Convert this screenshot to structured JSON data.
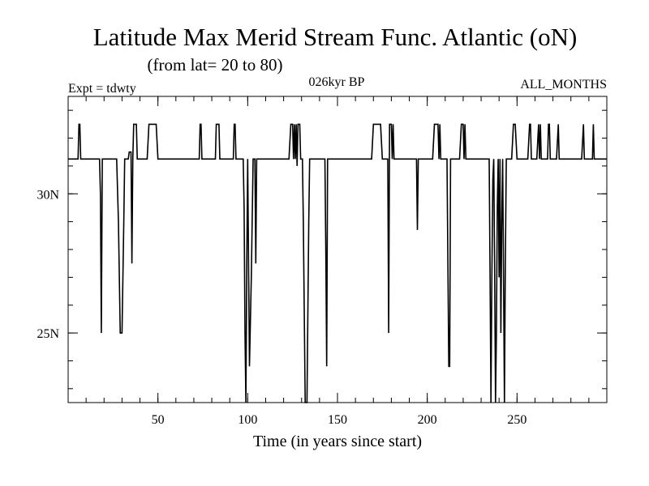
{
  "chart_data": {
    "type": "line",
    "title": "Latitude Max Merid Stream Func. Atlantic (oN)",
    "subtitle": "(from lat= 20 to 80)",
    "left_label": "Expt = tdwty",
    "center_label": "026kyr BP",
    "right_label": "ALL_MONTHS",
    "xlabel": "Time (in years since start)",
    "ylabel": "",
    "xlim": [
      0,
      300
    ],
    "ylim": [
      22.5,
      33.5
    ],
    "x_ticks": [
      {
        "value": 50,
        "label": "50"
      },
      {
        "value": 100,
        "label": "100"
      },
      {
        "value": 150,
        "label": "150"
      },
      {
        "value": 200,
        "label": "200"
      },
      {
        "value": 250,
        "label": "250"
      }
    ],
    "y_ticks": [
      {
        "value": 25,
        "label": "25N"
      },
      {
        "value": 30,
        "label": "30N"
      }
    ],
    "x_minor_step": 10,
    "y_minor_step": 1,
    "line_color": "#000000",
    "series": [
      {
        "name": "Latitude Max",
        "points": [
          [
            0,
            31.25
          ],
          [
            5.5,
            31.25
          ],
          [
            6,
            32.5
          ],
          [
            6.5,
            32.5
          ],
          [
            7,
            31.25
          ],
          [
            17.5,
            31.25
          ],
          [
            18,
            30
          ],
          [
            18.5,
            25
          ],
          [
            19,
            31.25
          ],
          [
            27,
            31.25
          ],
          [
            28,
            29
          ],
          [
            29,
            25
          ],
          [
            30,
            25
          ],
          [
            31,
            29
          ],
          [
            31.5,
            31.25
          ],
          [
            33.5,
            31.25
          ],
          [
            34,
            31.5
          ],
          [
            35,
            31.5
          ],
          [
            35.5,
            27.5
          ],
          [
            36,
            31.25
          ],
          [
            36.5,
            32.5
          ],
          [
            38,
            32.5
          ],
          [
            38.5,
            31.25
          ],
          [
            44,
            31.25
          ],
          [
            45,
            32.5
          ],
          [
            49,
            32.5
          ],
          [
            50,
            31.25
          ],
          [
            73,
            31.25
          ],
          [
            73.5,
            32.5
          ],
          [
            74,
            32.5
          ],
          [
            74.5,
            31.25
          ],
          [
            82,
            31.25
          ],
          [
            82.5,
            32.5
          ],
          [
            84,
            32.5
          ],
          [
            84.5,
            31.25
          ],
          [
            92,
            31.25
          ],
          [
            92.5,
            32.5
          ],
          [
            93,
            32.5
          ],
          [
            93.5,
            31.25
          ],
          [
            97.5,
            31.25
          ],
          [
            98,
            29.5
          ],
          [
            98.5,
            25
          ],
          [
            99,
            22.5
          ],
          [
            99.5,
            27.5
          ],
          [
            100,
            31.25
          ],
          [
            101,
            23.8
          ],
          [
            102,
            27
          ],
          [
            103,
            31.25
          ],
          [
            104,
            31.25
          ],
          [
            104.5,
            27.5
          ],
          [
            105,
            31.25
          ],
          [
            123,
            31.25
          ],
          [
            124,
            32.5
          ],
          [
            125,
            32.5
          ],
          [
            125.5,
            31.25
          ],
          [
            126,
            32.5
          ],
          [
            126.5,
            31.25
          ],
          [
            127,
            32.5
          ],
          [
            127.5,
            31
          ],
          [
            128,
            32.5
          ],
          [
            129,
            32.5
          ],
          [
            129.5,
            31.25
          ],
          [
            130.5,
            31.25
          ],
          [
            131,
            29
          ],
          [
            132,
            22.5
          ],
          [
            133,
            22.5
          ],
          [
            134,
            29
          ],
          [
            134.5,
            31.25
          ],
          [
            143,
            31.25
          ],
          [
            143.5,
            28
          ],
          [
            144,
            23.8
          ],
          [
            144.5,
            31.25
          ],
          [
            169,
            31.25
          ],
          [
            170,
            32.5
          ],
          [
            174,
            32.5
          ],
          [
            175,
            31.25
          ],
          [
            178,
            31.25
          ],
          [
            178.5,
            25
          ],
          [
            179,
            32.5
          ],
          [
            180,
            32.5
          ],
          [
            180.5,
            31.25
          ],
          [
            181,
            32.5
          ],
          [
            181.5,
            31.25
          ],
          [
            194,
            31.25
          ],
          [
            194.5,
            28.7
          ],
          [
            195,
            31.25
          ],
          [
            203,
            31.25
          ],
          [
            204,
            32.5
          ],
          [
            206,
            32.5
          ],
          [
            206.5,
            31.25
          ],
          [
            207,
            32.5
          ],
          [
            207.5,
            31.25
          ],
          [
            211,
            31.25
          ],
          [
            212,
            23.8
          ],
          [
            212.5,
            23.8
          ],
          [
            213,
            31.25
          ],
          [
            218,
            31.25
          ],
          [
            219,
            32.5
          ],
          [
            220,
            32.5
          ],
          [
            220.5,
            31.25
          ],
          [
            221,
            32.5
          ],
          [
            221.5,
            31.25
          ],
          [
            234.5,
            31.25
          ],
          [
            235,
            27
          ],
          [
            235.5,
            22.5
          ],
          [
            236,
            27
          ],
          [
            236.5,
            30.5
          ],
          [
            237,
            31.25
          ],
          [
            237.5,
            27.5
          ],
          [
            238,
            22.5
          ],
          [
            238.5,
            25
          ],
          [
            239,
            29.5
          ],
          [
            239.5,
            31.25
          ],
          [
            240,
            27
          ],
          [
            240.5,
            31.25
          ],
          [
            241,
            25
          ],
          [
            241.5,
            29
          ],
          [
            242,
            31.25
          ],
          [
            242.5,
            27
          ],
          [
            243,
            22.5
          ],
          [
            243.5,
            27.5
          ],
          [
            244,
            31.25
          ],
          [
            247,
            31.25
          ],
          [
            248,
            32.5
          ],
          [
            249,
            32.5
          ],
          [
            250,
            31.25
          ],
          [
            256,
            31.25
          ],
          [
            257,
            32.5
          ],
          [
            257.5,
            32.5
          ],
          [
            258,
            31.25
          ],
          [
            261,
            31.25
          ],
          [
            262,
            32.5
          ],
          [
            262.5,
            31.25
          ],
          [
            263,
            32.5
          ],
          [
            263.5,
            31.25
          ],
          [
            267,
            31.25
          ],
          [
            267.5,
            32.5
          ],
          [
            268,
            32.5
          ],
          [
            268.5,
            31.25
          ],
          [
            272,
            31.25
          ],
          [
            273,
            32.5
          ],
          [
            273.5,
            31.25
          ],
          [
            286,
            31.25
          ],
          [
            287,
            32.5
          ],
          [
            287.5,
            31.25
          ],
          [
            292,
            31.25
          ],
          [
            292.5,
            32.5
          ],
          [
            293,
            31.25
          ],
          [
            300,
            31.25
          ]
        ]
      }
    ]
  }
}
